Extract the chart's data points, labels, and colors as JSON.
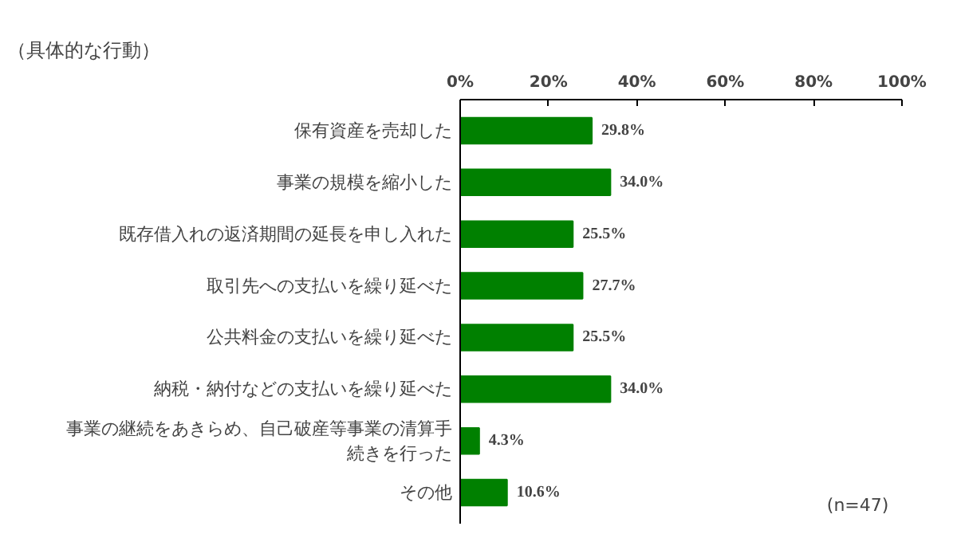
{
  "chart_data": {
    "type": "bar",
    "orientation": "horizontal",
    "title": "（具体的な行動）",
    "categories": [
      "保有資産を売却した",
      "事業の規模を縮小した",
      "既存借入れの返済期間の延長を申し入れた",
      "取引先への支払いを繰り延べた",
      "公共料金の支払いを繰り延べた",
      "納税・納付などの支払いを繰り延べた",
      "事業の継続をあきらめ、自己破産等事業の清算手続きを行った",
      "その他"
    ],
    "values": [
      29.8,
      34.0,
      25.5,
      27.7,
      25.5,
      34.0,
      4.3,
      10.6
    ],
    "value_labels": [
      "29.8%",
      "34.0%",
      "25.5%",
      "27.7%",
      "25.5%",
      "34.0%",
      "4.3%",
      "10.6%"
    ],
    "color": "#008000",
    "xlim": [
      0,
      100
    ],
    "xticks": [
      {
        "value": 0,
        "label": "0%"
      },
      {
        "value": 20,
        "label": "20%"
      },
      {
        "value": 40,
        "label": "40%"
      },
      {
        "value": 60,
        "label": "60%"
      },
      {
        "value": 80,
        "label": "80%"
      },
      {
        "value": 100,
        "label": "100%"
      }
    ],
    "grid": false,
    "annotations": [
      "(n=47)"
    ]
  }
}
